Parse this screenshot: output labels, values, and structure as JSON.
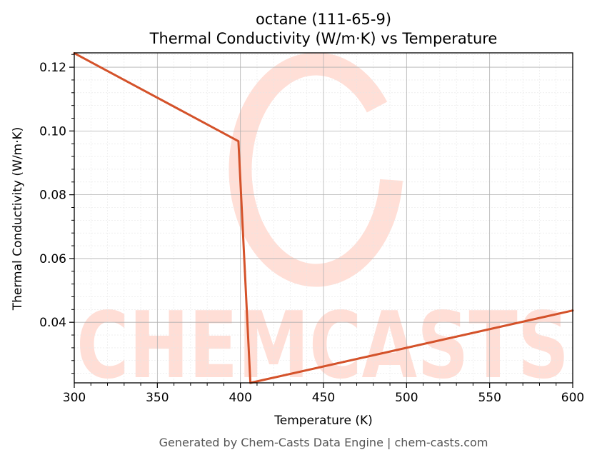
{
  "chart_data": {
    "type": "line",
    "title": "octane (111-65-9)",
    "subtitle": "Thermal Conductivity (W/m·K) vs Temperature",
    "xlabel": "Temperature (K)",
    "ylabel": "Thermal Conductivity (W/m·K)",
    "xlim": [
      300,
      600
    ],
    "ylim": [
      0.021,
      0.1245
    ],
    "xticks": [
      300,
      350,
      400,
      450,
      500,
      550,
      600
    ],
    "xtick_labels": [
      "300",
      "350",
      "400",
      "450",
      "500",
      "550",
      "600"
    ],
    "yticks": [
      0.04,
      0.06,
      0.08,
      0.1,
      0.12
    ],
    "ytick_labels": [
      "0.04",
      "0.06",
      "0.08",
      "0.10",
      "0.12"
    ],
    "grid": true,
    "series": [
      {
        "color": "#d4522a",
        "x": [
          300,
          398.8,
          406.0,
          600
        ],
        "y": [
          0.1244,
          0.0968,
          0.021,
          0.0437
        ]
      }
    ]
  },
  "watermark": {
    "text": "CHEMCASTS",
    "color": "#ffd9d0"
  },
  "footer": "Generated by Chem-Casts Data Engine | chem-casts.com"
}
